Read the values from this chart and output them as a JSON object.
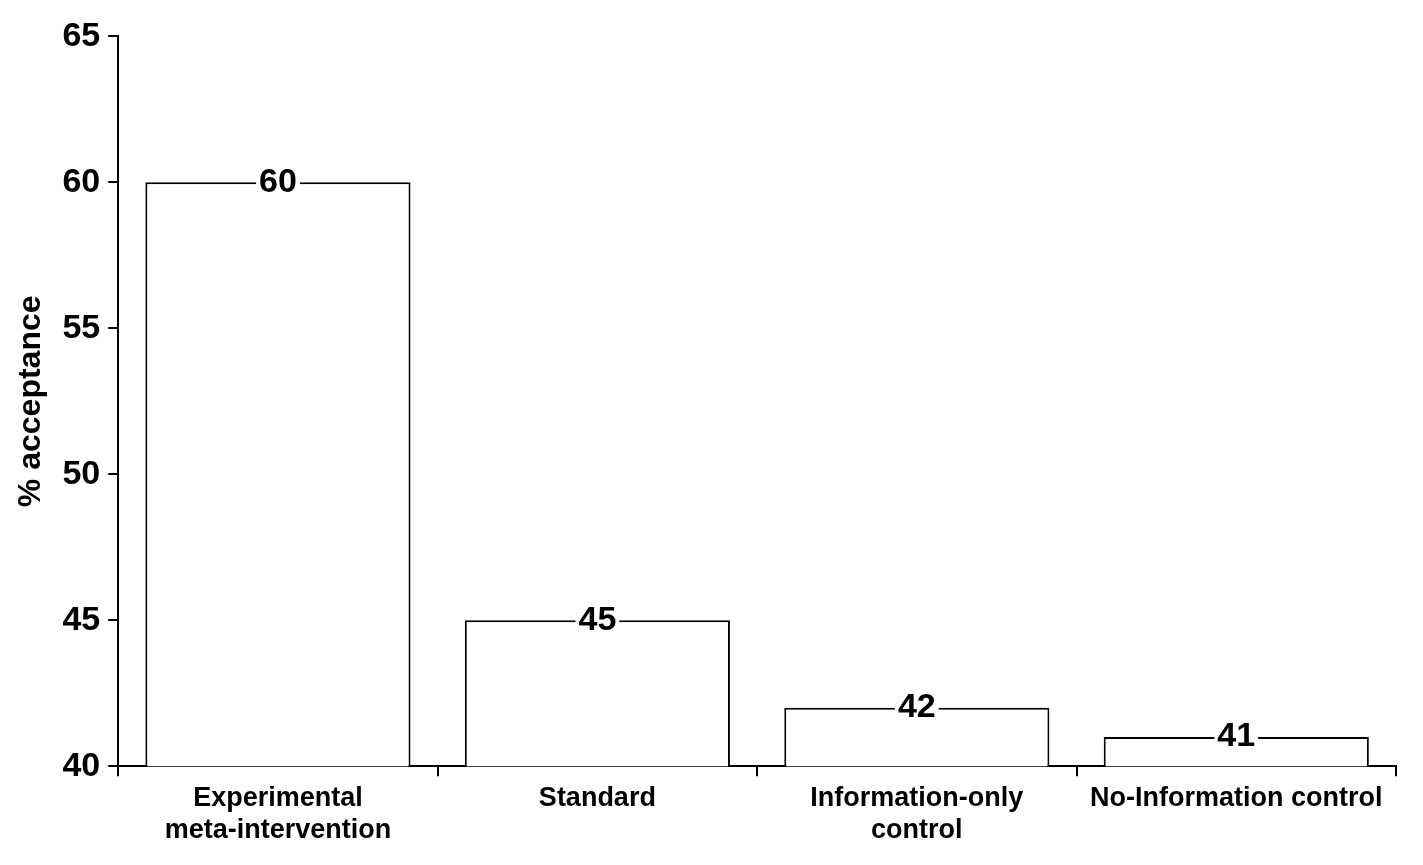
{
  "chart_data": {
    "type": "bar",
    "ylabel": "% acceptance",
    "categories": [
      "Experimental meta-intervention",
      "Standard",
      "Information-only control",
      "No-Information control"
    ],
    "values": [
      60,
      45,
      42,
      41
    ],
    "color": "#ffffff",
    "ylim": [
      40,
      65
    ],
    "yticks": [
      40,
      45,
      50,
      55,
      60,
      65
    ],
    "data_labels": true,
    "grid": false
  }
}
